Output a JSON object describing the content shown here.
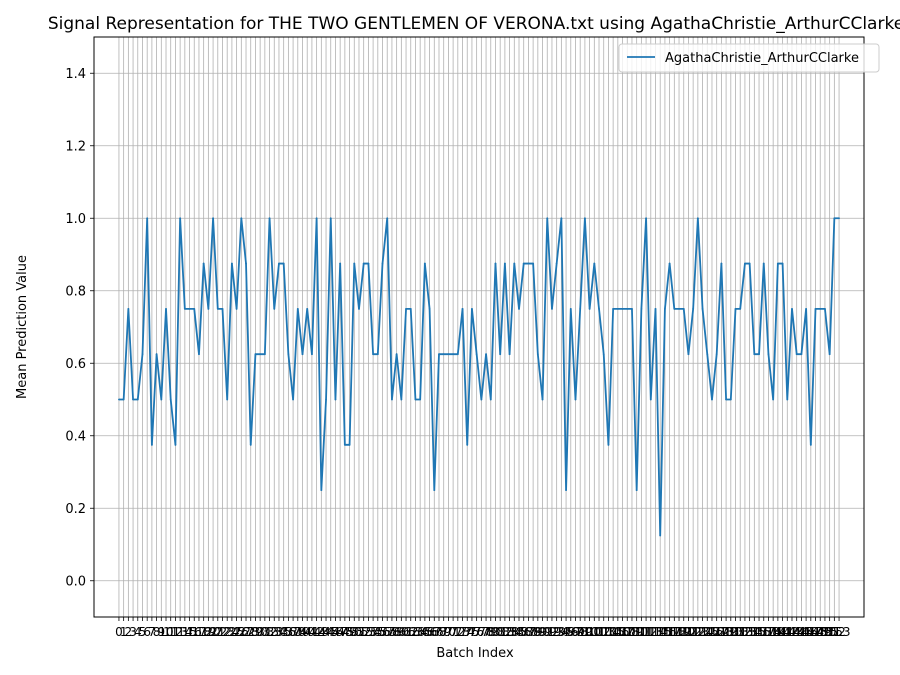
{
  "chart_data": {
    "type": "line",
    "title": "Signal Representation for THE TWO GENTLEMEN OF VERONA.txt using AgathaChristie_ArthurCClarke",
    "xlabel": "Batch Index",
    "ylabel": "Mean Prediction Value",
    "ylim": [
      -0.1,
      1.5
    ],
    "xlim": [
      -5.3,
      158.3
    ],
    "yticks": [
      0.0,
      0.2,
      0.4,
      0.6,
      0.8,
      1.0,
      1.2,
      1.4
    ],
    "grid": true,
    "legend_position": "top-right",
    "series": [
      {
        "name": "AgathaChristie_ArthurCClarke",
        "color": "#1f77b4",
        "x": [
          0,
          1,
          2,
          3,
          4,
          5,
          6,
          7,
          8,
          9,
          10,
          11,
          12,
          13,
          14,
          15,
          16,
          17,
          18,
          19,
          20,
          21,
          22,
          23,
          24,
          25,
          26,
          27,
          28,
          29,
          30,
          31,
          32,
          33,
          34,
          35,
          36,
          37,
          38,
          39,
          40,
          41,
          42,
          43,
          44,
          45,
          46,
          47,
          48,
          49,
          50,
          51,
          52,
          53,
          54,
          55,
          56,
          57,
          58,
          59,
          60,
          61,
          62,
          63,
          64,
          65,
          66,
          67,
          68,
          69,
          70,
          71,
          72,
          73,
          74,
          75,
          76,
          77,
          78,
          79,
          80,
          81,
          82,
          83,
          84,
          85,
          86,
          87,
          88,
          89,
          90,
          91,
          92,
          93,
          94,
          95,
          96,
          97,
          98,
          99,
          100,
          101,
          102,
          103,
          104,
          105,
          106,
          107,
          108,
          109,
          110,
          111,
          112,
          113,
          114,
          115,
          116,
          117,
          118,
          119,
          120,
          121,
          122,
          123,
          124,
          125,
          126,
          127,
          128,
          129,
          130,
          131,
          132,
          133,
          134,
          135,
          136,
          137,
          138,
          139,
          140,
          141,
          142,
          143,
          144,
          145,
          146,
          147,
          148,
          149,
          150,
          151,
          152,
          153
        ],
        "values": [
          0.5,
          0.5,
          0.75,
          0.5,
          0.5,
          0.625,
          1.0,
          0.375,
          0.625,
          0.5,
          0.75,
          0.5,
          0.375,
          1.0,
          0.75,
          0.75,
          0.75,
          0.625,
          0.875,
          0.75,
          1.0,
          0.75,
          0.75,
          0.5,
          0.875,
          0.75,
          1.0,
          0.875,
          0.375,
          0.625,
          0.625,
          0.625,
          1.0,
          0.75,
          0.875,
          0.875,
          0.625,
          0.5,
          0.75,
          0.625,
          0.75,
          0.625,
          1.0,
          0.25,
          0.5,
          1.0,
          0.5,
          0.875,
          0.375,
          0.375,
          0.875,
          0.75,
          0.875,
          0.875,
          0.625,
          0.625,
          0.875,
          1.0,
          0.5,
          0.625,
          0.5,
          0.75,
          0.75,
          0.5,
          0.5,
          0.875,
          0.75,
          0.25,
          0.625,
          0.625,
          0.625,
          0.625,
          0.625,
          0.75,
          0.375,
          0.75,
          0.625,
          0.5,
          0.625,
          0.5,
          0.875,
          0.625,
          0.875,
          0.625,
          0.875,
          0.75,
          0.875,
          0.875,
          0.875,
          0.625,
          0.5,
          1.0,
          0.75,
          0.875,
          1.0,
          0.25,
          0.75,
          0.5,
          0.75,
          1.0,
          0.75,
          0.875,
          0.75,
          0.625,
          0.375,
          0.75,
          0.75,
          0.75,
          0.75,
          0.75,
          0.25,
          0.75,
          1.0,
          0.5,
          0.75,
          0.125,
          0.75,
          0.875,
          0.75,
          0.75,
          0.75,
          0.625,
          0.75,
          1.0,
          0.75,
          0.625,
          0.5,
          0.625,
          0.875,
          0.5,
          0.5,
          0.75,
          0.75,
          0.875,
          0.875,
          0.625,
          0.625,
          0.875,
          0.625,
          0.5,
          0.875,
          0.875,
          0.5,
          0.75,
          0.625,
          0.625,
          0.75,
          0.375,
          0.75,
          0.75,
          0.75,
          0.625,
          1.0,
          1.0
        ]
      }
    ]
  }
}
